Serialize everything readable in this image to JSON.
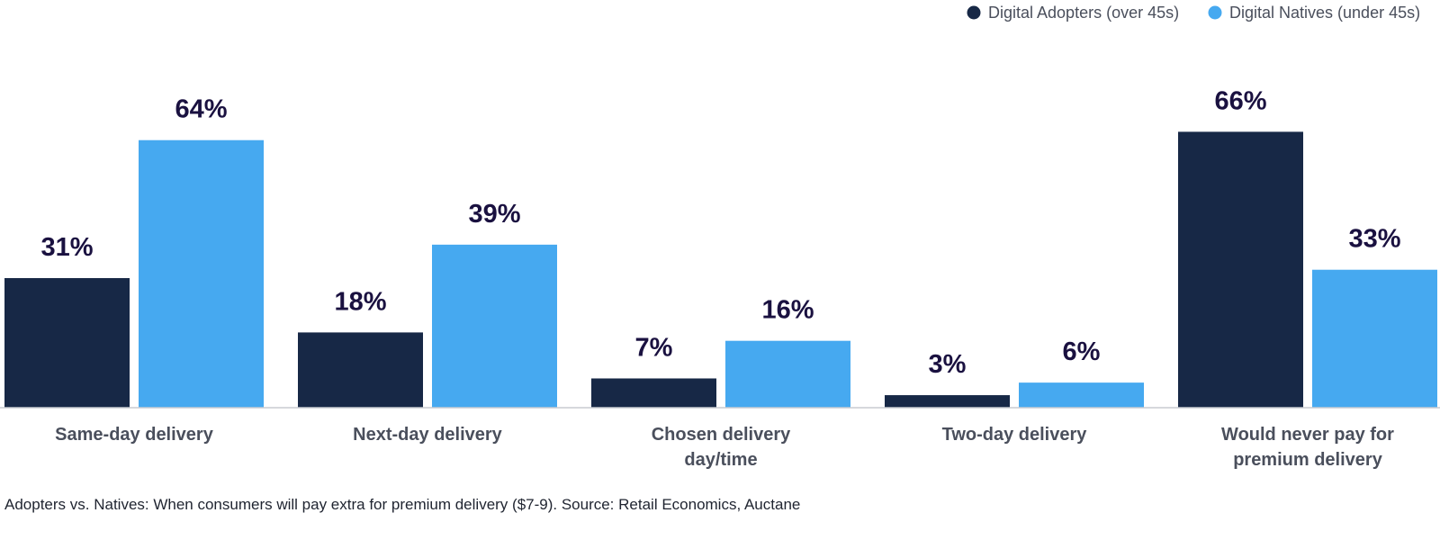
{
  "chart_data": {
    "type": "bar",
    "categories": [
      [
        "Same-day delivery"
      ],
      [
        "Next-day delivery"
      ],
      [
        "Chosen delivery",
        "day/time"
      ],
      [
        "Two-day delivery"
      ],
      [
        "Would never pay for",
        "premium delivery"
      ]
    ],
    "series": [
      {
        "name": "Digital Adopters (over 45s)",
        "values": [
          31,
          18,
          7,
          3,
          66
        ],
        "labels": [
          "31%",
          "18%",
          "7%",
          "3%",
          "66%"
        ],
        "color": "#172846"
      },
      {
        "name": "Digital Natives (under 45s)",
        "values": [
          64,
          39,
          16,
          6,
          33
        ],
        "labels": [
          "64%",
          "39%",
          "16%",
          "6%",
          "33%"
        ],
        "color": "#46a9f0"
      }
    ],
    "ylim": [
      0,
      70
    ],
    "grid": false,
    "legend_position": "top-right",
    "caption": "Adopters vs. Natives: When consumers will pay extra for premium delivery ($7-9). Source: Retail Economics, Auctane"
  }
}
